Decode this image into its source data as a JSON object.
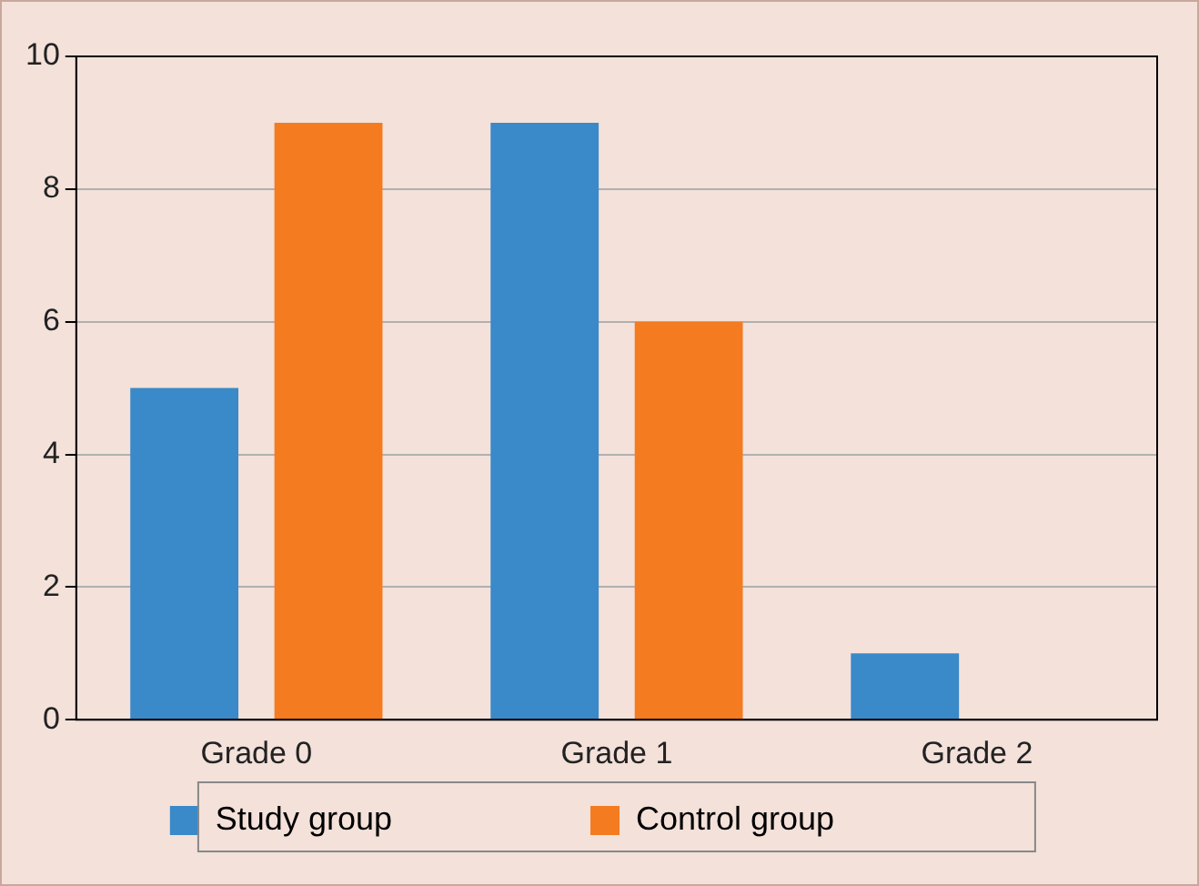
{
  "chart_data": {
    "type": "bar",
    "categories": [
      "Grade 0",
      "Grade 1",
      "Grade 2"
    ],
    "series": [
      {
        "name": "Study group",
        "color": "#3a89c9",
        "values": [
          5,
          9,
          1
        ]
      },
      {
        "name": "Control group",
        "color": "#f47b20",
        "values": [
          9,
          6,
          0
        ]
      }
    ],
    "ylim": [
      0,
      10
    ],
    "yticks": [
      0,
      2,
      4,
      6,
      8,
      10
    ],
    "grid": "y",
    "legend": "bottom"
  }
}
